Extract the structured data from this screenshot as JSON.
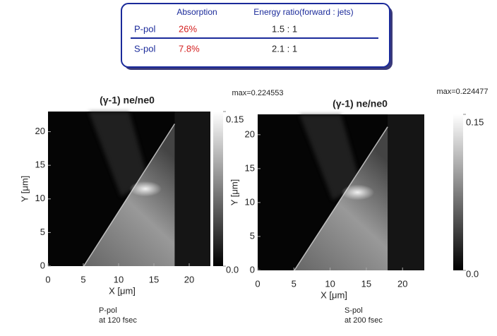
{
  "table": {
    "headers": [
      "Absorption",
      "Energy ratio(forward : jets)"
    ],
    "rows": [
      [
        "P-pol",
        "26%",
        "1.5 : 1"
      ],
      [
        "S-pol",
        "7.8%",
        "2.1 : 1"
      ]
    ]
  },
  "chart_data": [
    {
      "type": "heatmap",
      "title": "(γ-1) ne/ne0",
      "annotation": "max=0.224553",
      "xlabel": "X [μm]",
      "ylabel": "Y [μm]",
      "xlim": [
        0,
        23
      ],
      "ylim": [
        0,
        23
      ],
      "xticks": [
        0,
        5,
        10,
        15,
        20
      ],
      "yticks": [
        0,
        5,
        10,
        15,
        20
      ],
      "colorbar_lim": [
        0,
        0.15
      ],
      "colorbar_ticks": [
        {
          "value": 0,
          "label": "0.0"
        },
        0.15
      ],
      "caption": [
        "P-pol",
        "at 120 fsec"
      ]
    },
    {
      "type": "heatmap",
      "title": "(γ-1) ne/ne0",
      "annotation": "max=0.224477",
      "xlabel": "X [μm]",
      "ylabel": "Y [μm]",
      "xlim": [
        0,
        23
      ],
      "ylim": [
        0,
        23
      ],
      "xticks": [
        0,
        5,
        10,
        15,
        20
      ],
      "yticks": [
        0,
        5,
        10,
        15,
        20
      ],
      "colorbar_lim": [
        0,
        0.15
      ],
      "colorbar_ticks": [
        {
          "value": 0,
          "label": "0.0"
        },
        0.15
      ],
      "caption": [
        "S-pol",
        "at 200 fsec"
      ]
    }
  ]
}
